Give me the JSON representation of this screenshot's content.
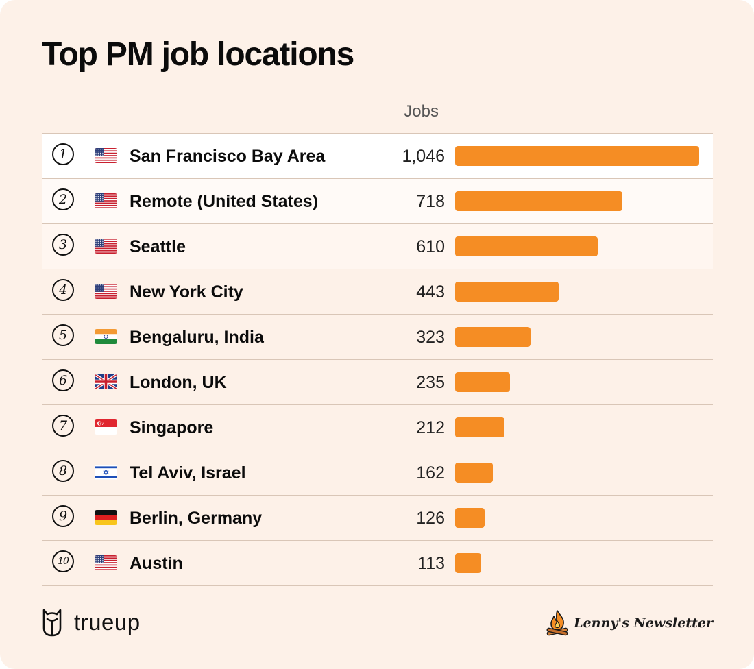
{
  "title": "Top PM job locations",
  "column_header": "Jobs",
  "accent_color": "#f58d24",
  "background_color": "#fdf1e8",
  "rows": [
    {
      "rank": "1",
      "flag": "us-flag-icon",
      "location": "San Francisco Bay Area",
      "jobs_label": "1,046"
    },
    {
      "rank": "2",
      "flag": "us-flag-icon",
      "location": "Remote (United States)",
      "jobs_label": "718"
    },
    {
      "rank": "3",
      "flag": "us-flag-icon",
      "location": "Seattle",
      "jobs_label": "610"
    },
    {
      "rank": "4",
      "flag": "us-flag-icon",
      "location": "New York City",
      "jobs_label": "443"
    },
    {
      "rank": "5",
      "flag": "india-flag-icon",
      "location": "Bengaluru, India",
      "jobs_label": "323"
    },
    {
      "rank": "6",
      "flag": "uk-flag-icon",
      "location": "London, UK",
      "jobs_label": "235"
    },
    {
      "rank": "7",
      "flag": "singapore-flag-icon",
      "location": "Singapore",
      "jobs_label": "212"
    },
    {
      "rank": "8",
      "flag": "israel-flag-icon",
      "location": "Tel Aviv, Israel",
      "jobs_label": "162"
    },
    {
      "rank": "9",
      "flag": "germany-flag-icon",
      "location": "Berlin, Germany",
      "jobs_label": "126"
    },
    {
      "rank": "10",
      "flag": "us-flag-icon",
      "location": "Austin",
      "jobs_label": "113"
    }
  ],
  "chart_data": {
    "type": "bar",
    "orientation": "horizontal",
    "title": "Top PM job locations",
    "ylabel": "Jobs",
    "categories": [
      "San Francisco Bay Area",
      "Remote (United States)",
      "Seattle",
      "New York City",
      "Bengaluru, India",
      "London, UK",
      "Singapore",
      "Tel Aviv, Israel",
      "Berlin, Germany",
      "Austin"
    ],
    "values": [
      1046,
      718,
      610,
      443,
      323,
      235,
      212,
      162,
      126,
      113
    ],
    "grid": false
  },
  "footer": {
    "brand_left": "trueup",
    "brand_left_icon": "owl-logo-icon",
    "brand_right": "Lenny's Newsletter",
    "brand_right_icon": "campfire-logo-icon"
  }
}
